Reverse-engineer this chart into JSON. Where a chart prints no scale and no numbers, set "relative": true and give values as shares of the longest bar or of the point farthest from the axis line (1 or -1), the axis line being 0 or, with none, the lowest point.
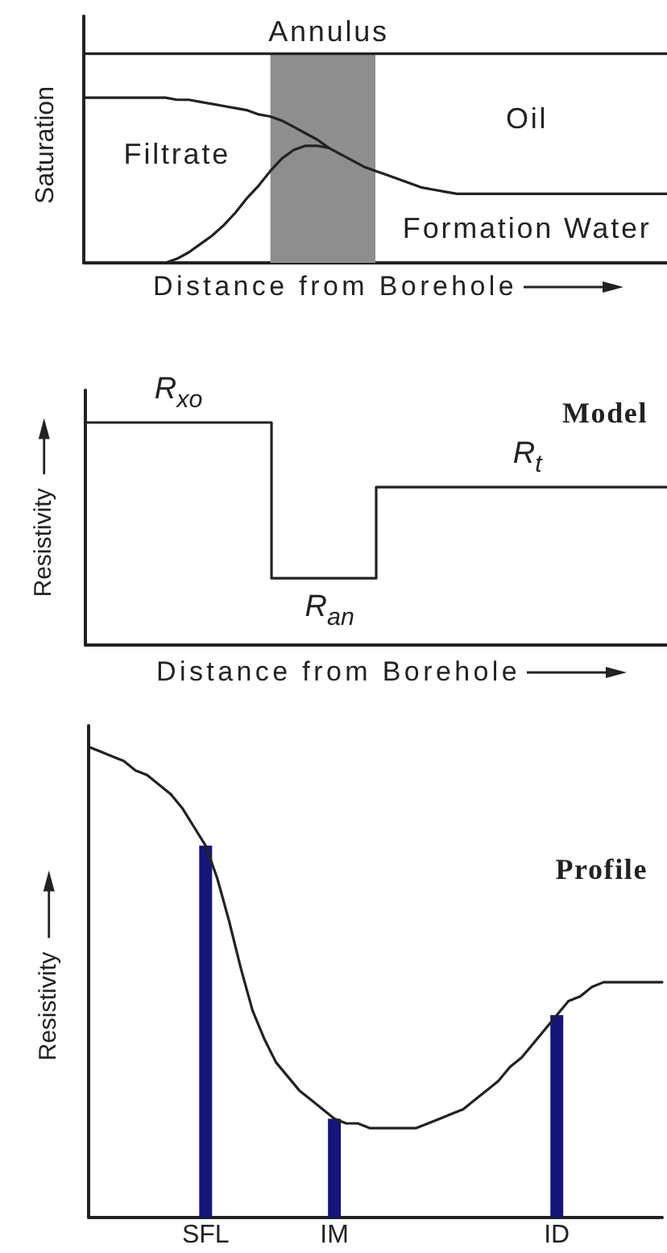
{
  "chart_data": [
    {
      "type": "line",
      "xlabel": "Distance from Borehole",
      "ylabel": "Saturation",
      "relative": true,
      "tick_labels": false,
      "categories": [
        null,
        null,
        null,
        null,
        null,
        null,
        null,
        null,
        null,
        null,
        null,
        null,
        null,
        null,
        null,
        null,
        null,
        null,
        null,
        null,
        null,
        null,
        null,
        null,
        null,
        null,
        null,
        null,
        null,
        null,
        null,
        null,
        null,
        null,
        null,
        null,
        null,
        null,
        null,
        null,
        null,
        null,
        null,
        null,
        null,
        null,
        null,
        null,
        null,
        null,
        null
      ],
      "series": [
        {
          "color": "#222222",
          "values": [
            1,
            1,
            1,
            1,
            1,
            1,
            1,
            1,
            1,
            1,
            1,
            1,
            1,
            1,
            1,
            1,
            1,
            1,
            1,
            1,
            1,
            1,
            1,
            1,
            1,
            1,
            1,
            1,
            1,
            1,
            1,
            1,
            1,
            1,
            1,
            1,
            1,
            1,
            1,
            1,
            1,
            1,
            1,
            1,
            1,
            1,
            1,
            1,
            1,
            1,
            1
          ]
        },
        {
          "color": "#222222",
          "values": [
            0.79,
            0.79,
            0.79,
            0.79,
            0.79,
            0.79,
            0.79,
            0.79,
            0.78,
            0.78,
            0.77,
            0.76,
            0.75,
            0.74,
            0.73,
            0.71,
            0.7,
            0.68,
            0.65,
            0.62,
            0.59,
            0.55,
            0.52,
            0.49,
            0.46,
            0.44,
            0.42,
            0.4,
            0.38,
            0.36,
            0.35,
            0.34,
            0.33,
            0.33,
            0.33,
            0.33,
            0.33,
            0.33,
            0.33,
            0.33,
            0.33,
            0.33,
            0.33,
            0.33,
            0.33,
            0.33,
            0.33,
            0.33,
            0.33,
            0.33,
            0.33
          ]
        },
        {
          "color": "#222222",
          "values": [
            null,
            null,
            null,
            null,
            null,
            null,
            null,
            0,
            0.02,
            0.05,
            0.09,
            0.13,
            0.18,
            0.24,
            0.31,
            0.37,
            0.44,
            0.5,
            0.54,
            0.56,
            0.56,
            0.55,
            null,
            null,
            null,
            null,
            null,
            null,
            null,
            null,
            null,
            null,
            null,
            null,
            null,
            null,
            null,
            null,
            null,
            null,
            null,
            null,
            null,
            null,
            null,
            null,
            null,
            null,
            null,
            null,
            null
          ]
        },
        {
          "name": "Annulus",
          "type": "area",
          "color": "#8e8e8e",
          "values": [
            null,
            null,
            null,
            null,
            null,
            null,
            null,
            null,
            null,
            null,
            null,
            null,
            null,
            null,
            null,
            null,
            1,
            1,
            1,
            1,
            1,
            1,
            1,
            1,
            1,
            1,
            null,
            null,
            null,
            null,
            null,
            null,
            null,
            null,
            null,
            null,
            null,
            null,
            null,
            null,
            null,
            null,
            null,
            null,
            null,
            null,
            null,
            null,
            null,
            null,
            null
          ]
        }
      ],
      "annotations": [
        "Oil",
        "Filtrate",
        "Formation Water"
      ]
    },
    {
      "type": "step",
      "title": "Model",
      "xlabel": "Distance from Borehole",
      "ylabel": "Resistivity",
      "relative": true,
      "tick_labels": false,
      "categories": [
        null,
        null,
        null,
        null,
        null,
        null,
        null,
        null,
        null,
        null,
        null,
        null,
        null,
        null,
        null,
        null,
        null,
        null,
        null,
        null,
        null,
        null,
        null,
        null,
        null,
        null,
        null,
        null,
        null,
        null,
        null,
        null,
        null,
        null,
        null,
        null,
        null,
        null,
        null,
        null,
        null,
        null,
        null,
        null,
        null,
        null,
        null,
        null,
        null,
        null,
        null
      ],
      "series": [
        {
          "color": "#222222",
          "values": [
            1,
            1,
            1,
            1,
            1,
            1,
            1,
            1,
            1,
            1,
            1,
            1,
            1,
            1,
            1,
            1,
            0.3,
            0.3,
            0.3,
            0.3,
            0.3,
            0.3,
            0.3,
            0.3,
            0.3,
            0.71,
            0.71,
            0.71,
            0.71,
            0.71,
            0.71,
            0.71,
            0.71,
            0.71,
            0.71,
            0.71,
            0.71,
            0.71,
            0.71,
            0.71,
            0.71,
            0.71,
            0.71,
            0.71,
            0.71,
            0.71,
            0.71,
            0.71,
            0.71,
            0.71,
            0.71
          ]
        }
      ],
      "annotations": [
        {
          "text": "R$_{xo}$",
          "y": 1
        },
        {
          "text": "R$_{t}$",
          "y": 0.71
        },
        {
          "text": "R$_{an}$",
          "y": 0.3
        }
      ]
    },
    {
      "type": "line",
      "title": "Profile",
      "ylabel": "Resistivity",
      "relative": true,
      "tick_labels": "x",
      "categories": [
        null,
        null,
        null,
        null,
        null,
        null,
        null,
        null,
        null,
        null,
        "SFL",
        null,
        null,
        null,
        null,
        null,
        null,
        null,
        null,
        null,
        null,
        "IM",
        null,
        null,
        null,
        null,
        null,
        null,
        null,
        null,
        null,
        null,
        null,
        null,
        null,
        null,
        null,
        null,
        null,
        null,
        "ID",
        null,
        null,
        null,
        null,
        null,
        null,
        null,
        null,
        null
      ],
      "series": [
        {
          "color": "#222222",
          "values": [
            1,
            0.99,
            0.98,
            0.97,
            0.95,
            0.94,
            0.92,
            0.9,
            0.87,
            0.83,
            0.79,
            0.72,
            0.63,
            0.53,
            0.44,
            0.38,
            0.33,
            0.3,
            0.27,
            0.25,
            0.23,
            0.21,
            0.2,
            0.2,
            0.19,
            0.19,
            0.19,
            0.19,
            0.19,
            0.2,
            0.21,
            0.22,
            0.23,
            0.25,
            0.27,
            0.29,
            0.32,
            0.34,
            0.37,
            0.4,
            0.43,
            0.46,
            0.47,
            0.49,
            0.5,
            0.5,
            0.5,
            0.5,
            0.5,
            0.5
          ]
        },
        {
          "type": "bar",
          "color": "#15157a",
          "values": [
            null,
            null,
            null,
            null,
            null,
            null,
            null,
            null,
            null,
            null,
            0.79,
            null,
            null,
            null,
            null,
            null,
            null,
            null,
            null,
            null,
            null,
            0.21,
            null,
            null,
            null,
            null,
            null,
            null,
            null,
            null,
            null,
            null,
            null,
            null,
            null,
            null,
            null,
            null,
            null,
            null,
            0.43,
            null,
            null,
            null,
            null,
            null,
            null,
            null,
            null,
            null
          ]
        }
      ]
    }
  ]
}
